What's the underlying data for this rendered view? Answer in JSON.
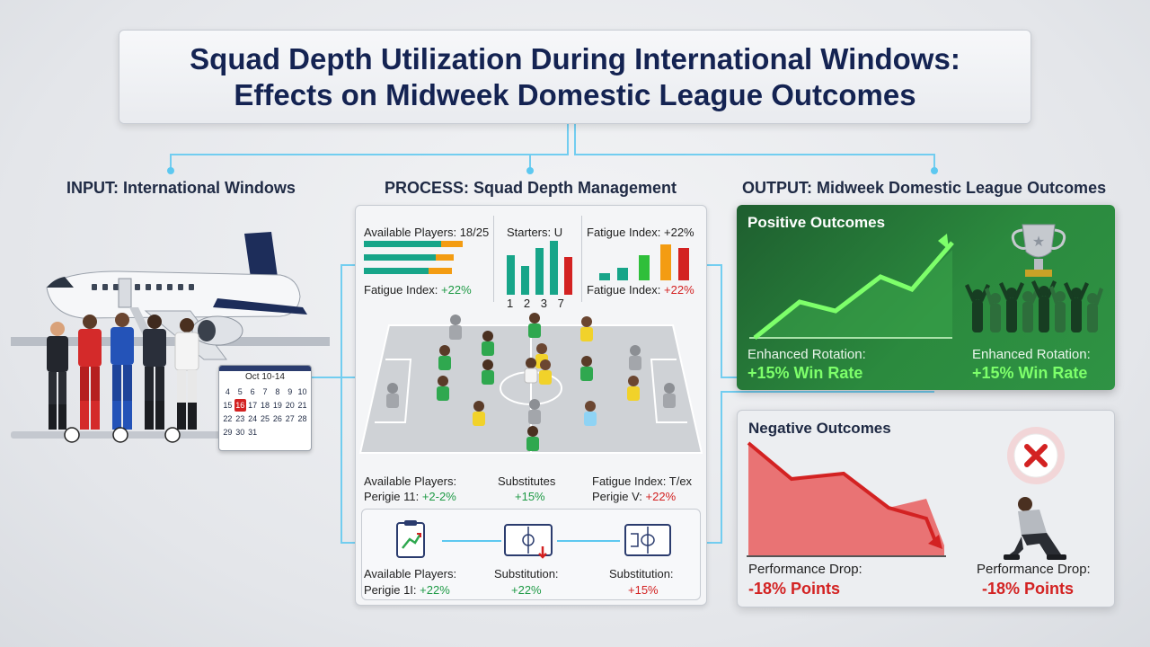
{
  "title": {
    "line1": "Squad Depth Utilization During International Windows:",
    "line2": "Effects on Midweek Domestic League Outcomes"
  },
  "columns": {
    "input": "INPUT: International Windows",
    "process": "PROCESS: Squad Depth Management",
    "output": "OUTPUT: Midweek Domestic League Outcomes"
  },
  "calendar": {
    "header": "Oct 10-14",
    "days": [
      "4",
      "5",
      "6",
      "7",
      "8",
      "9",
      "10",
      "15",
      "16",
      "17",
      "18",
      "19",
      "20",
      "21",
      "22",
      "23",
      "24",
      "25",
      "26",
      "27",
      "28",
      "29",
      "30",
      "31"
    ],
    "highlight": "16"
  },
  "process": {
    "available_top": "Available Players: 18/25",
    "fatigue_left": "Fatigue Index:",
    "fatigue_left_pct": "+22%",
    "starters": "Starters: U",
    "starters_ticks": [
      "1",
      "2",
      "3",
      "7"
    ],
    "fatigue_top": "Fatigue Index: +22%",
    "fatigue_right": "Fatigue Index:",
    "fatigue_right_pct": "+22%",
    "mid_available": "Available Players:",
    "mid_available_sub": "Perigie 11:",
    "mid_available_pct": "+2-2%",
    "mid_subs": "Substitutes",
    "mid_subs_pct": "+15%",
    "mid_fatigue": "Fatigue Index: T/ex",
    "mid_fatigue_sub": "Perigie V:",
    "mid_fatigue_pct": "+22%",
    "bot_available": "Available Players:",
    "bot_available_sub": "Perigie 1I:",
    "bot_available_pct": "+22%",
    "bot_sub1": "Substitution:",
    "bot_sub1_pct": "+22%",
    "bot_sub2": "Substitution:",
    "bot_sub2_pct": "+15%"
  },
  "positive": {
    "title": "Positive Outcomes",
    "left_label": "Enhanced Rotation:",
    "left_value": "+15% Win Rate",
    "right_label": "Enhanced Rotation:",
    "right_value": "+15% Win Rate"
  },
  "negative": {
    "title": "Negative Outcomes",
    "left_label": "Performance Drop:",
    "left_value": "-18% Points",
    "right_label": "Performance Drop:",
    "right_value": "-18% Points"
  },
  "colors": {
    "navy": "#142352",
    "green": "#2b8a3e",
    "bright_green": "#7dff6a",
    "red": "#d32222",
    "teal": "#17a589",
    "orange": "#f39c12",
    "connector": "#5dc8f0"
  }
}
